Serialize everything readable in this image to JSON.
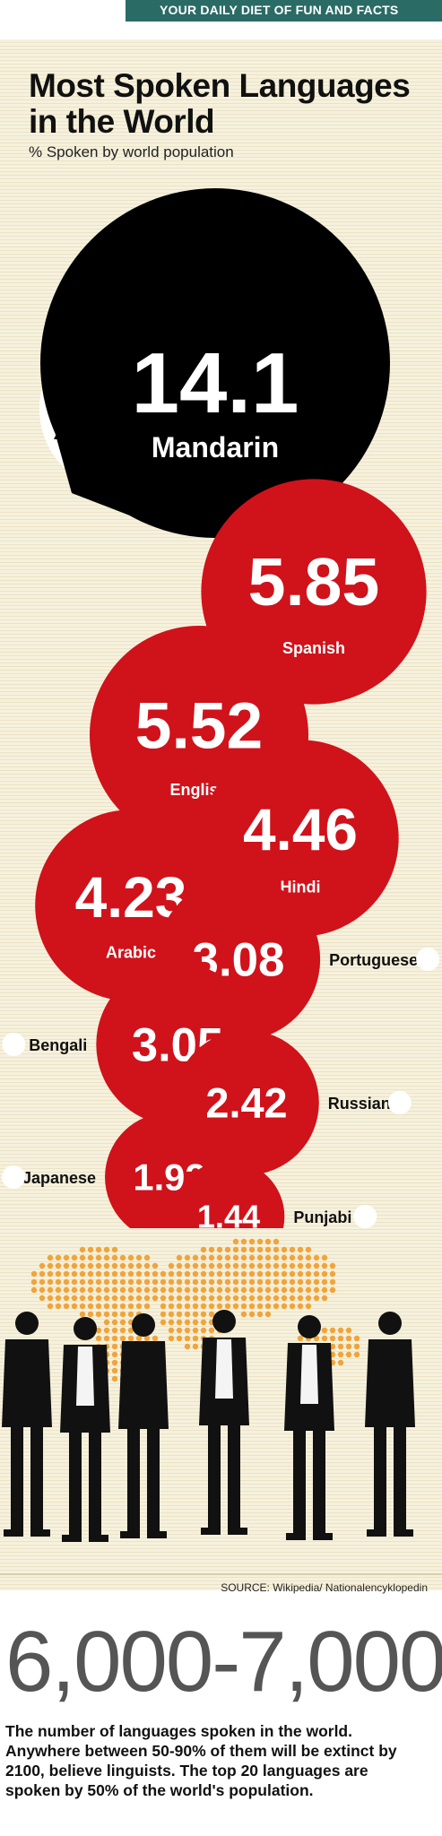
{
  "banner": {
    "tagline": "YOUR DAILY DIET OF FUN AND FACTS"
  },
  "header": {
    "title": "Most Spoken Languages in the World",
    "subtitle": "% Spoken by world population"
  },
  "chart_data": {
    "type": "bubble",
    "title": "Most Spoken Languages in the World",
    "subtitle": "% Spoken by world population",
    "categories": [
      "Mandarin",
      "Spanish",
      "English",
      "Hindi",
      "Arabic",
      "Portuguese",
      "Bengali",
      "Russian",
      "Japanese",
      "Punjabi"
    ],
    "values": [
      14.1,
      5.85,
      5.52,
      4.46,
      4.23,
      3.08,
      3.05,
      2.42,
      1.92,
      1.44
    ],
    "value_labels": [
      "14.1",
      "5.85",
      "5.52",
      "4.46",
      "4.23",
      "3.08",
      "3.05",
      "2.42",
      "1.92",
      "1.44"
    ],
    "colors": {
      "largest": "#000000",
      "others": "#d0121b"
    }
  },
  "colors": {
    "banner": "#2a6b66",
    "background": "#f6f1dd",
    "bubble_red": "#d0121b",
    "bubble_black": "#000000",
    "map_dots": "#f0a43a"
  },
  "icons": [
    "dragon-illustration",
    "world-map-dots",
    "business-people-silhouettes"
  ],
  "source": "SOURCE: Wikipedia/ Nationalencyklopedin",
  "fact": {
    "number": "6,000-7,000",
    "text": "The number of languages spoken in the world. Anywhere between 50-90% of them will be extinct by 2100, believe linguists. The top 20 languages are spoken by 50% of the world's population."
  }
}
